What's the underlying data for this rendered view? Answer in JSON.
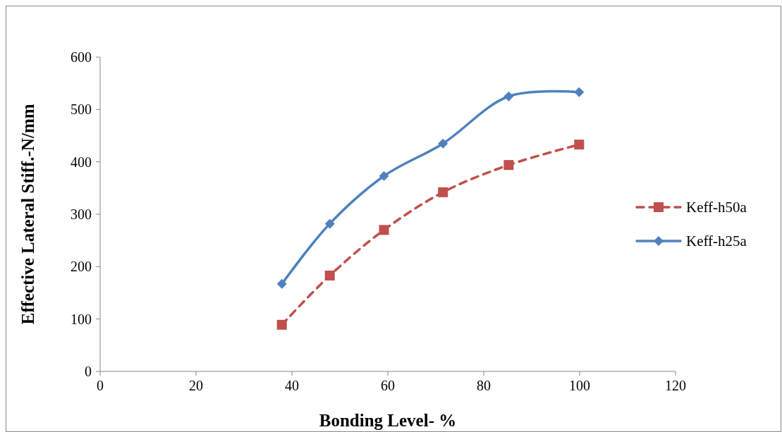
{
  "chart_data": {
    "type": "line",
    "xlabel": "Bonding Level- %",
    "ylabel": "Effective Lateral Stiff.-N/mm",
    "xlim": [
      0,
      120
    ],
    "xticks": [
      0,
      20,
      40,
      60,
      80,
      100,
      120
    ],
    "ylim": [
      0,
      600
    ],
    "yticks": [
      0,
      100,
      200,
      300,
      400,
      500,
      600
    ],
    "grid": false,
    "legend": "right",
    "series": [
      {
        "name": "Keff-h50a",
        "color": "#c0504d",
        "line_style": "dashed",
        "marker": "square",
        "x": [
          37.9,
          47.9,
          59.2,
          71.5,
          85.2,
          99.9
        ],
        "values": [
          89,
          183,
          270,
          342,
          394,
          433
        ]
      },
      {
        "name": "Keff-h25a",
        "color": "#4f81bd",
        "line_style": "solid",
        "marker": "diamond",
        "x": [
          37.9,
          47.9,
          59.2,
          71.5,
          85.2,
          99.9
        ],
        "values": [
          167,
          282,
          373,
          435,
          525,
          533
        ]
      }
    ]
  }
}
